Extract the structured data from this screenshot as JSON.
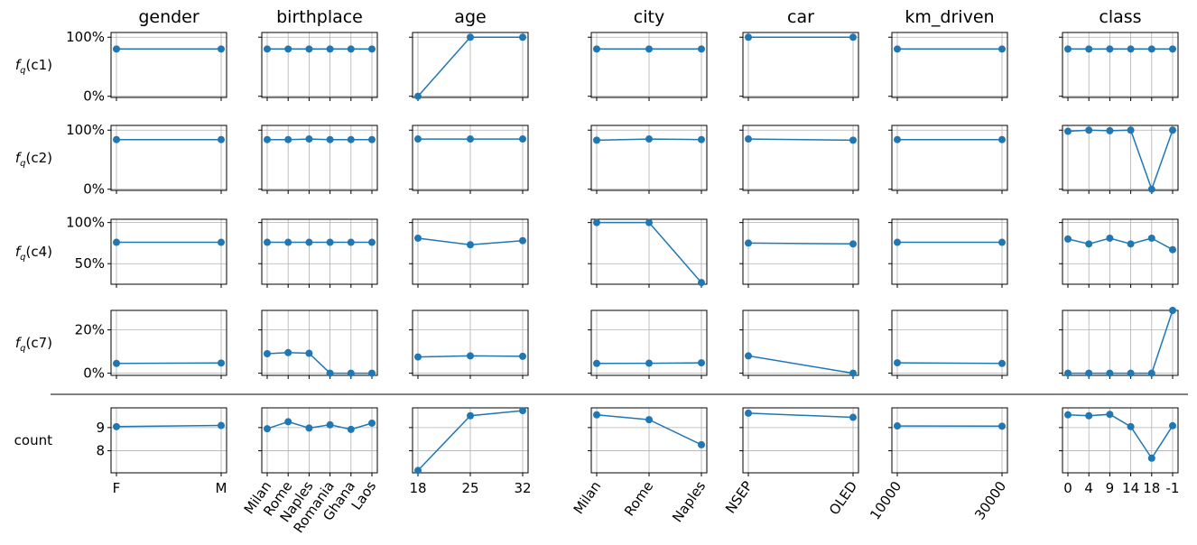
{
  "chart_data": {
    "type": "line",
    "layout": "small-multiples grid (rows = metrics, columns = features)",
    "grid": true,
    "series_color": "#1f77b4",
    "columns": [
      {
        "key": "gender",
        "title": "gender",
        "categories": [
          "F",
          "M"
        ]
      },
      {
        "key": "birthplace",
        "title": "birthplace",
        "categories": [
          "Milan",
          "Rome",
          "Naples",
          "Romania",
          "Ghana",
          "Laos"
        ]
      },
      {
        "key": "age",
        "title": "age",
        "categories": [
          "18",
          "25",
          "32"
        ]
      },
      {
        "key": "city",
        "title": "city",
        "categories": [
          "Milan",
          "Rome",
          "Naples"
        ]
      },
      {
        "key": "car",
        "title": "car",
        "categories": [
          "NSEP",
          "OLED"
        ]
      },
      {
        "key": "km_driven",
        "title": "km_driven",
        "categories": [
          "10000",
          "30000"
        ]
      },
      {
        "key": "class",
        "title": "class",
        "categories": [
          "0",
          "4",
          "9",
          "14",
          "18",
          "-1"
        ]
      }
    ],
    "rows": [
      {
        "key": "c1",
        "label_prefix": "f",
        "label_sub": "q",
        "label_suffix": "(c1)",
        "ylim": [
          -0.02,
          1.08
        ],
        "yticks": [
          {
            "v": 0,
            "label": "0%"
          },
          {
            "v": 1,
            "label": "100%"
          }
        ],
        "values": {
          "gender": [
            0.8,
            0.8
          ],
          "birthplace": [
            0.8,
            0.8,
            0.8,
            0.8,
            0.8,
            0.8
          ],
          "age": [
            0.0,
            1.0,
            1.0
          ],
          "city": [
            0.8,
            0.8,
            0.8
          ],
          "car": [
            1.0,
            1.0
          ],
          "km_driven": [
            0.8,
            0.8
          ],
          "class": [
            0.8,
            0.8,
            0.8,
            0.8,
            0.8,
            0.8
          ]
        }
      },
      {
        "key": "c2",
        "label_prefix": "f",
        "label_sub": "q",
        "label_suffix": "(c2)",
        "ylim": [
          -0.02,
          1.08
        ],
        "yticks": [
          {
            "v": 0,
            "label": "0%"
          },
          {
            "v": 1,
            "label": "100%"
          }
        ],
        "values": {
          "gender": [
            0.84,
            0.84
          ],
          "birthplace": [
            0.84,
            0.84,
            0.85,
            0.84,
            0.84,
            0.84
          ],
          "age": [
            0.85,
            0.85,
            0.85
          ],
          "city": [
            0.83,
            0.85,
            0.84
          ],
          "car": [
            0.85,
            0.83
          ],
          "km_driven": [
            0.84,
            0.84
          ],
          "class": [
            0.98,
            1.0,
            0.99,
            1.0,
            0.0,
            1.0
          ]
        }
      },
      {
        "key": "c4",
        "label_prefix": "f",
        "label_sub": "q",
        "label_suffix": "(c4)",
        "ylim": [
          0.25,
          1.04
        ],
        "yticks": [
          {
            "v": 0.5,
            "label": "50%"
          },
          {
            "v": 1,
            "label": "100%"
          }
        ],
        "values": {
          "gender": [
            0.76,
            0.76
          ],
          "birthplace": [
            0.76,
            0.76,
            0.76,
            0.76,
            0.76,
            0.76
          ],
          "age": [
            0.81,
            0.73,
            0.78
          ],
          "city": [
            1.0,
            1.0,
            0.27
          ],
          "car": [
            0.75,
            0.74
          ],
          "km_driven": [
            0.76,
            0.76
          ],
          "class": [
            0.8,
            0.74,
            0.81,
            0.74,
            0.81,
            0.67
          ]
        }
      },
      {
        "key": "c7",
        "label_prefix": "f",
        "label_sub": "q",
        "label_suffix": "(c7)",
        "ylim": [
          -0.01,
          0.29
        ],
        "yticks": [
          {
            "v": 0,
            "label": "0%"
          },
          {
            "v": 0.2,
            "label": "20%"
          }
        ],
        "values": {
          "gender": [
            0.045,
            0.047
          ],
          "birthplace": [
            0.09,
            0.095,
            0.092,
            0.0,
            0.0,
            0.0
          ],
          "age": [
            0.075,
            0.08,
            0.078
          ],
          "city": [
            0.045,
            0.046,
            0.048
          ],
          "car": [
            0.08,
            0.0
          ],
          "km_driven": [
            0.048,
            0.045
          ],
          "class": [
            0.0,
            0.0,
            0.0,
            0.0,
            0.0,
            0.29
          ]
        }
      },
      {
        "key": "count",
        "label": "count",
        "ylim": [
          7.05,
          9.85
        ],
        "yticks": [
          {
            "v": 8,
            "label": "8"
          },
          {
            "v": 9,
            "label": "9"
          }
        ],
        "values": {
          "gender": [
            9.04,
            9.09
          ],
          "birthplace": [
            8.95,
            9.25,
            8.98,
            9.12,
            8.92,
            9.19
          ],
          "age": [
            7.15,
            9.51,
            9.73
          ],
          "city": [
            9.55,
            9.34,
            8.26
          ],
          "car": [
            9.62,
            9.44
          ],
          "km_driven": [
            9.07,
            9.06
          ],
          "class": [
            9.55,
            9.51,
            9.57,
            9.04,
            7.68,
            9.08
          ]
        }
      }
    ]
  }
}
